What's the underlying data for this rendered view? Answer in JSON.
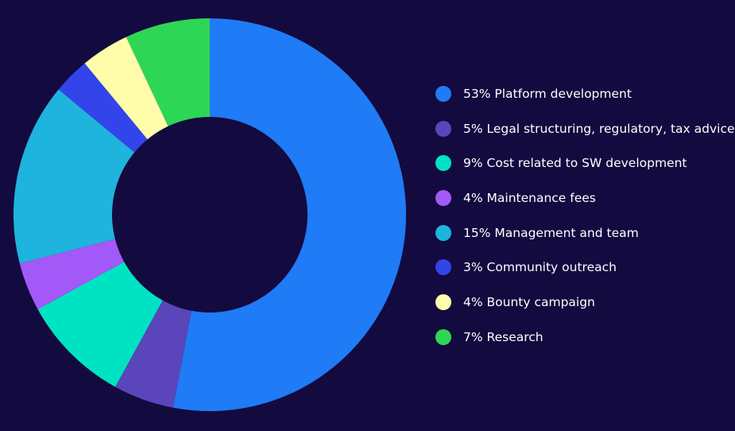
{
  "chart_data": {
    "type": "pie",
    "variant": "donut",
    "start_angle_deg": 0,
    "direction": "clockwise",
    "legend_position": "right",
    "background": "#130a40",
    "hole_color": "#130a40",
    "categories": [
      "Platform development",
      "Legal structuring, regulatory, tax advice",
      "Cost related to SW development",
      "Maintenance fees",
      "Management and team",
      "Community outreach",
      "Bounty campaign",
      "Research"
    ],
    "values": [
      53,
      5,
      9,
      4,
      15,
      3,
      4,
      7
    ],
    "unit": "%",
    "colors": [
      "#1f7bf6",
      "#5b45bb",
      "#00e3c3",
      "#a259f8",
      "#1fb4dd",
      "#3344ea",
      "#fffcaa",
      "#2ed656"
    ],
    "legend": [
      "53% Platform development",
      "5% Legal structuring, regulatory, tax advice",
      "9% Cost related to SW development",
      "4% Maintenance fees",
      "15% Management and team",
      "3% Community outreach",
      "4% Bounty campaign",
      "7% Research"
    ]
  }
}
